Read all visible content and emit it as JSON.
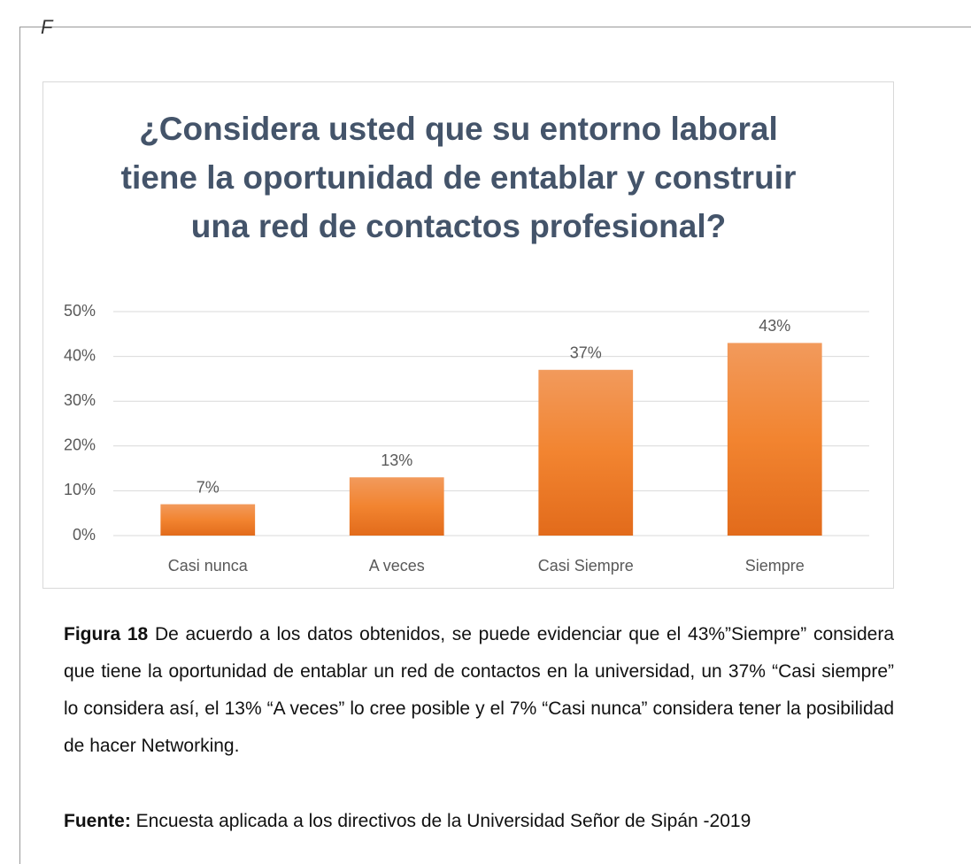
{
  "header_fragment": "F",
  "chart_data": {
    "type": "bar",
    "title": "¿Considera usted que su entorno laboral tiene la oportunidad de entablar y construir una red de contactos profesional?",
    "categories": [
      "Casi nunca",
      "A veces",
      "Casi Siempre",
      "Siempre"
    ],
    "values": [
      7,
      13,
      37,
      43
    ],
    "value_labels": [
      "7%",
      "13%",
      "37%",
      "43%"
    ],
    "color": "#ed7d31",
    "ylim": [
      0,
      50
    ],
    "yticks": [
      {
        "value": 0,
        "label": "0%"
      },
      {
        "value": 10,
        "label": "10%"
      },
      {
        "value": 20,
        "label": "20%"
      },
      {
        "value": 30,
        "label": "30%"
      },
      {
        "value": 40,
        "label": "40%"
      },
      {
        "value": 50,
        "label": "50%"
      }
    ],
    "grid": true
  },
  "caption": {
    "label": "Figura 18",
    "text": "De acuerdo a los datos obtenidos, se puede evidenciar que el 43%”Siempre” considera que tiene la oportunidad de entablar un red de contactos en la universidad, un 37% “Casi siempre” lo considera así, el 13% “A veces” lo cree posible y el 7% “Casi nunca” considera tener la posibilidad de hacer Networking."
  },
  "source": {
    "label": "Fuente:",
    "text": "Encuesta aplicada a los directivos de la Universidad Señor de Sipán -2019"
  }
}
